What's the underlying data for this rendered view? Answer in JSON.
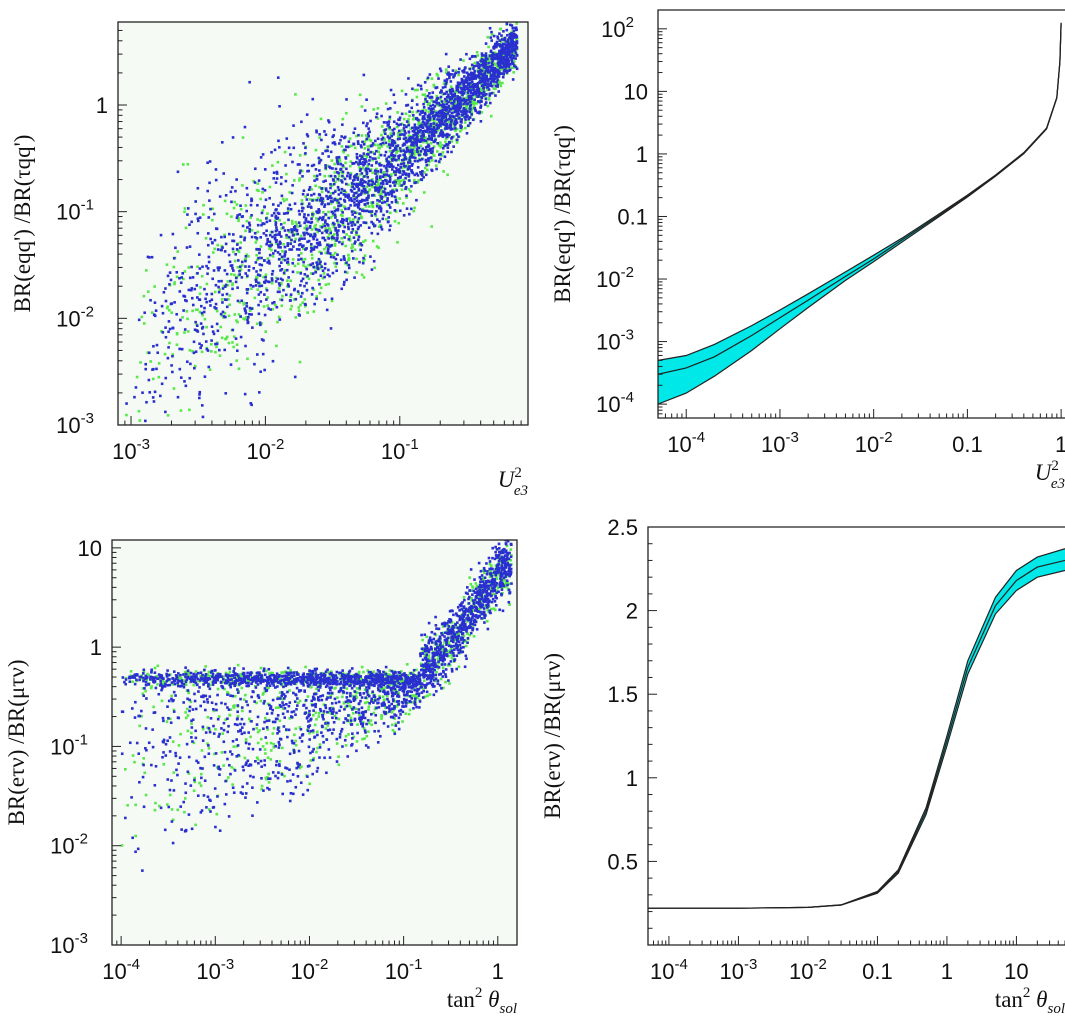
{
  "chart_data": [
    {
      "panel": "top-left",
      "type": "scatter",
      "xlabel": "U_e3^2",
      "ylabel": "BR(eqq')/BR(τqq')",
      "xscale": "log",
      "yscale": "log",
      "xlim": [
        0.0008,
        0.9
      ],
      "ylim": [
        0.001,
        6
      ],
      "background": "#f5faf4",
      "xticks": [
        {
          "value": 0.001,
          "label": "10",
          "sup": "-3"
        },
        {
          "value": 0.01,
          "label": "10",
          "sup": "-2"
        },
        {
          "value": 0.1,
          "label": "10",
          "sup": "-1"
        }
      ],
      "yticks": [
        {
          "value": 0.001,
          "label": "10",
          "sup": "-3"
        },
        {
          "value": 0.01,
          "label": "10",
          "sup": "-2"
        },
        {
          "value": 0.1,
          "label": "10",
          "sup": "-1"
        },
        {
          "value": 1,
          "label": "1",
          "sup": ""
        }
      ],
      "series": [
        {
          "color": "#58e84a",
          "count": 1400,
          "trend": [
            [
              0.001,
              0.0025
            ],
            [
              0.002,
              0.0085
            ],
            [
              0.005,
              0.02
            ],
            [
              0.01,
              0.035
            ],
            [
              0.02,
              0.06
            ],
            [
              0.05,
              0.14
            ],
            [
              0.1,
              0.3
            ],
            [
              0.2,
              0.7
            ],
            [
              0.4,
              1.6
            ],
            [
              0.7,
              3.5
            ]
          ]
        },
        {
          "color": "#2a2fd0",
          "count": 2600,
          "trend": [
            [
              0.001,
              0.0032
            ],
            [
              0.002,
              0.01
            ],
            [
              0.005,
              0.025
            ],
            [
              0.01,
              0.042
            ],
            [
              0.02,
              0.07
            ],
            [
              0.05,
              0.16
            ],
            [
              0.1,
              0.33
            ],
            [
              0.2,
              0.75
            ],
            [
              0.4,
              1.7
            ],
            [
              0.7,
              3.6
            ]
          ]
        }
      ]
    },
    {
      "panel": "top-right",
      "type": "line",
      "xlabel": "U_e3^2",
      "ylabel": "BR(eqq')/BR(τqq')",
      "xscale": "log",
      "yscale": "log",
      "xlim": [
        5e-05,
        1.1
      ],
      "ylim": [
        6e-05,
        200
      ],
      "band_color": "#00e8e8",
      "xticks": [
        {
          "value": 0.0001,
          "label": "10",
          "sup": "-4"
        },
        {
          "value": 0.001,
          "label": "10",
          "sup": "-3"
        },
        {
          "value": 0.01,
          "label": "10",
          "sup": "-2"
        },
        {
          "value": 0.1,
          "label": "0.1",
          "sup": ""
        },
        {
          "value": 1,
          "label": "1",
          "sup": ""
        }
      ],
      "yticks": [
        {
          "value": 0.0001,
          "label": "10",
          "sup": "-4"
        },
        {
          "value": 0.001,
          "label": "10",
          "sup": "-3"
        },
        {
          "value": 0.01,
          "label": "10",
          "sup": "-2"
        },
        {
          "value": 0.1,
          "label": "0.1",
          "sup": ""
        },
        {
          "value": 1,
          "label": "1",
          "sup": ""
        },
        {
          "value": 10,
          "label": "10",
          "sup": ""
        },
        {
          "value": 100,
          "label": "10",
          "sup": "2"
        }
      ],
      "x": [
        5e-05,
        0.0001,
        0.0002,
        0.0005,
        0.001,
        0.002,
        0.005,
        0.01,
        0.02,
        0.05,
        0.1,
        0.2,
        0.4,
        0.7,
        0.9,
        0.97,
        1.0
      ],
      "upper": [
        0.0005,
        0.0006,
        0.0009,
        0.0018,
        0.0032,
        0.0058,
        0.013,
        0.024,
        0.045,
        0.11,
        0.22,
        0.46,
        1.05,
        2.6,
        8.0,
        30,
        125
      ],
      "central": [
        0.0003,
        0.00038,
        0.00057,
        0.00125,
        0.0024,
        0.0046,
        0.011,
        0.021,
        0.042,
        0.105,
        0.21,
        0.45,
        1.03,
        2.55,
        7.9,
        30,
        125
      ],
      "lower": [
        0.0001,
        0.00015,
        0.00028,
        0.00072,
        0.0016,
        0.0035,
        0.0095,
        0.019,
        0.039,
        0.1,
        0.205,
        0.44,
        1.01,
        2.5,
        7.8,
        29,
        120
      ]
    },
    {
      "panel": "bottom-left",
      "type": "scatter",
      "xlabel": "tan² θ_sol",
      "ylabel": "BR(eτν)/BR(μτν)",
      "xscale": "log",
      "yscale": "log",
      "xlim": [
        8e-05,
        1.6
      ],
      "ylim": [
        0.001,
        12
      ],
      "background": "#f5faf4",
      "xticks": [
        {
          "value": 0.0001,
          "label": "10",
          "sup": "-4"
        },
        {
          "value": 0.001,
          "label": "10",
          "sup": "-3"
        },
        {
          "value": 0.01,
          "label": "10",
          "sup": "-2"
        },
        {
          "value": 0.1,
          "label": "10",
          "sup": "-1"
        },
        {
          "value": 1,
          "label": "1",
          "sup": ""
        }
      ],
      "yticks": [
        {
          "value": 0.001,
          "label": "10",
          "sup": "-3"
        },
        {
          "value": 0.01,
          "label": "10",
          "sup": "-2"
        },
        {
          "value": 0.1,
          "label": "10",
          "sup": "-1"
        },
        {
          "value": 1,
          "label": "1",
          "sup": ""
        },
        {
          "value": 10,
          "label": "10",
          "sup": ""
        }
      ],
      "series": [
        {
          "color": "#58e84a",
          "count": 1100,
          "plateau": 0.5,
          "floor": [
            [
              0.0001,
              0.004
            ],
            [
              0.001,
              0.012
            ],
            [
              0.01,
              0.04
            ],
            [
              0.1,
              0.15
            ],
            [
              0.3,
              0.5
            ]
          ],
          "trend": [
            [
              0.1,
              0.5
            ],
            [
              0.2,
              0.7
            ],
            [
              0.4,
              1.5
            ],
            [
              0.7,
              3.5
            ],
            [
              1.2,
              6.5
            ]
          ]
        },
        {
          "color": "#2a2fd0",
          "count": 2400,
          "plateau": 0.48,
          "floor": [
            [
              0.0001,
              0.003
            ],
            [
              0.001,
              0.01
            ],
            [
              0.01,
              0.035
            ],
            [
              0.1,
              0.15
            ],
            [
              0.3,
              0.5
            ]
          ],
          "trend": [
            [
              0.1,
              0.5
            ],
            [
              0.2,
              0.7
            ],
            [
              0.4,
              1.5
            ],
            [
              0.7,
              3.5
            ],
            [
              1.2,
              6.5
            ]
          ]
        }
      ]
    },
    {
      "panel": "bottom-right",
      "type": "line",
      "xlabel": "tan² θ_sol",
      "ylabel": "BR(eτν)/BR(μτν)",
      "xscale": "log",
      "yscale": "linear",
      "xlim": [
        5e-05,
        50
      ],
      "ylim": [
        0,
        2.5
      ],
      "band_color": "#00e8e8",
      "xticks": [
        {
          "value": 0.0001,
          "label": "10",
          "sup": "-4"
        },
        {
          "value": 0.001,
          "label": "10",
          "sup": "-3"
        },
        {
          "value": 0.01,
          "label": "10",
          "sup": "-2"
        },
        {
          "value": 0.1,
          "label": "0.1",
          "sup": ""
        },
        {
          "value": 1,
          "label": "1",
          "sup": ""
        },
        {
          "value": 10,
          "label": "10",
          "sup": ""
        }
      ],
      "yticks": [
        {
          "value": 0.5,
          "label": "0.5",
          "sup": ""
        },
        {
          "value": 1,
          "label": "1",
          "sup": ""
        },
        {
          "value": 1.5,
          "label": "1.5",
          "sup": ""
        },
        {
          "value": 2,
          "label": "2",
          "sup": ""
        },
        {
          "value": 2.5,
          "label": "2.5",
          "sup": ""
        }
      ],
      "x": [
        5e-05,
        0.0001,
        0.001,
        0.01,
        0.03,
        0.1,
        0.2,
        0.5,
        1,
        2,
        5,
        10,
        20,
        50
      ],
      "upper": [
        0.22,
        0.22,
        0.22,
        0.225,
        0.24,
        0.32,
        0.45,
        0.82,
        1.25,
        1.7,
        2.08,
        2.24,
        2.32,
        2.37
      ],
      "central": [
        0.22,
        0.22,
        0.22,
        0.225,
        0.24,
        0.315,
        0.44,
        0.8,
        1.22,
        1.66,
        2.03,
        2.18,
        2.26,
        2.3
      ],
      "lower": [
        0.22,
        0.22,
        0.22,
        0.225,
        0.238,
        0.31,
        0.43,
        0.78,
        1.19,
        1.62,
        1.98,
        2.12,
        2.2,
        2.24
      ]
    }
  ]
}
